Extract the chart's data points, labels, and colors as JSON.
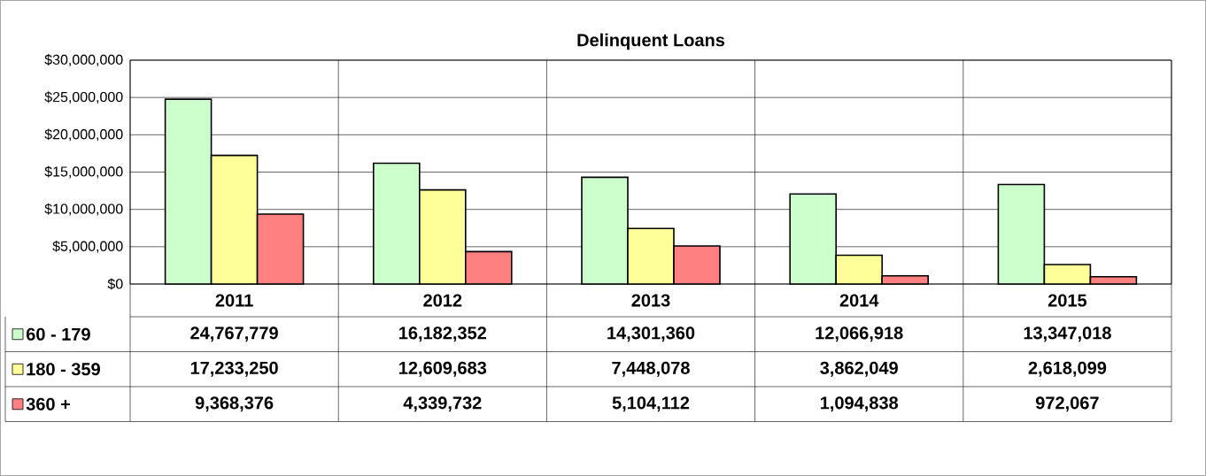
{
  "chart_data": {
    "type": "bar",
    "title": "Delinquent Loans",
    "categories": [
      "2011",
      "2012",
      "2013",
      "2014",
      "2015"
    ],
    "series": [
      {
        "name": "60 - 179",
        "color": "#ccffcc",
        "values": [
          24767779,
          16182352,
          14301360,
          12066918,
          13347018
        ],
        "value_labels": [
          "24,767,779",
          "16,182,352",
          "14,301,360",
          "12,066,918",
          "13,347,018"
        ]
      },
      {
        "name": "180 - 359",
        "color": "#ffff99",
        "values": [
          17233250,
          12609683,
          7448078,
          3862049,
          2618099
        ],
        "value_labels": [
          "17,233,250",
          "12,609,683",
          "7,448,078",
          "3,862,049",
          "2,618,099"
        ]
      },
      {
        "name": "360 +",
        "color": "#ff8080",
        "values": [
          9368376,
          4339732,
          5104112,
          1094838,
          972067
        ],
        "value_labels": [
          "9,368,376",
          "4,339,732",
          "5,104,112",
          "1,094,838",
          "972,067"
        ]
      }
    ],
    "ylim": [
      0,
      30000000
    ],
    "yticks": [
      {
        "value": 0,
        "label": "$0"
      },
      {
        "value": 5000000,
        "label": "$5,000,000"
      },
      {
        "value": 10000000,
        "label": "$10,000,000"
      },
      {
        "value": 15000000,
        "label": "$15,000,000"
      },
      {
        "value": 20000000,
        "label": "$20,000,000"
      },
      {
        "value": 25000000,
        "label": "$25,000,000"
      },
      {
        "value": 30000000,
        "label": "$30,000,000"
      }
    ],
    "grid": true,
    "legend": "bottom left"
  }
}
